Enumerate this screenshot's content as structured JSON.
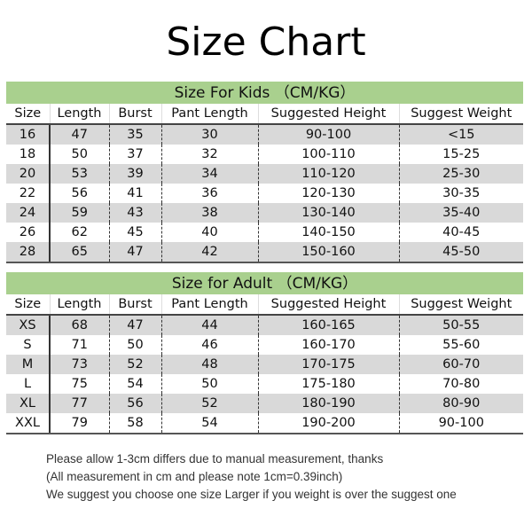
{
  "title": "Size Chart",
  "columns": [
    "Size",
    "Length",
    "Burst",
    "Pant Length",
    "Suggested Height",
    "Suggest Weight"
  ],
  "kids": {
    "heading": "Size For Kids （CM/KG）",
    "rows": [
      [
        "16",
        "47",
        "35",
        "30",
        "90-100",
        "<15"
      ],
      [
        "18",
        "50",
        "37",
        "32",
        "100-110",
        "15-25"
      ],
      [
        "20",
        "53",
        "39",
        "34",
        "110-120",
        "25-30"
      ],
      [
        "22",
        "56",
        "41",
        "36",
        "120-130",
        "30-35"
      ],
      [
        "24",
        "59",
        "43",
        "38",
        "130-140",
        "35-40"
      ],
      [
        "26",
        "62",
        "45",
        "40",
        "140-150",
        "40-45"
      ],
      [
        "28",
        "65",
        "47",
        "42",
        "150-160",
        "45-50"
      ]
    ]
  },
  "adult": {
    "heading": "Size for Adult （CM/KG）",
    "rows": [
      [
        "XS",
        "68",
        "47",
        "44",
        "160-165",
        "50-55"
      ],
      [
        "S",
        "71",
        "50",
        "46",
        "160-170",
        "55-60"
      ],
      [
        "M",
        "73",
        "52",
        "48",
        "170-175",
        "60-70"
      ],
      [
        "L",
        "75",
        "54",
        "50",
        "175-180",
        "70-80"
      ],
      [
        "XL",
        "77",
        "56",
        "52",
        "180-190",
        "80-90"
      ],
      [
        "XXL",
        "79",
        "58",
        "54",
        "190-200",
        "90-100"
      ]
    ]
  },
  "notes": [
    "Please allow 1-3cm differs due to manual measurement, thanks",
    "(All measurement in cm and please note 1cm=0.39inch)",
    "We suggest you choose one size Larger if you weight is over the suggest one"
  ],
  "colors": {
    "band": "#a9d08e",
    "stripe": "#d9d9d9"
  }
}
